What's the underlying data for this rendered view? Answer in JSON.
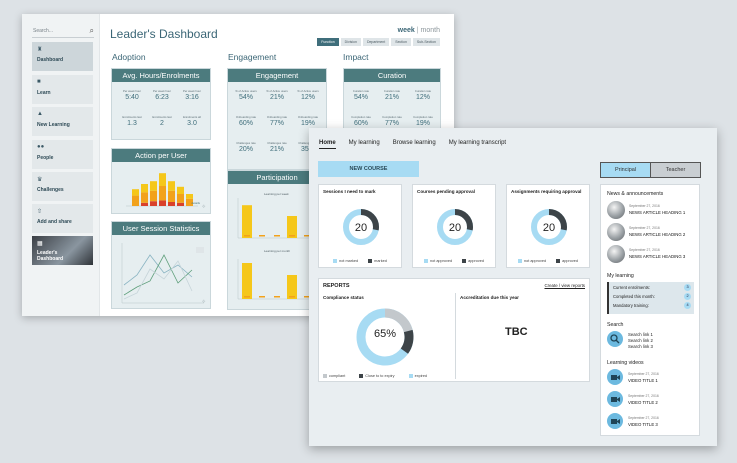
{
  "back": {
    "search_placeholder": "Search...",
    "sidebar": [
      {
        "label": "Dashboard",
        "icon": "binoculars-icon"
      },
      {
        "label": "Learn",
        "icon": "folder-icon"
      },
      {
        "label": "New Learning",
        "icon": "graduation-cap-icon"
      },
      {
        "label": "People",
        "icon": "people-icon"
      },
      {
        "label": "Challenges",
        "icon": "trophy-icon"
      },
      {
        "label": "Add and share",
        "icon": "upload-icon"
      },
      {
        "label": "Leader's Dashboard",
        "icon": "dashboard-icon"
      }
    ],
    "title": "Leader's Dashboard",
    "period": {
      "week": "week",
      "sep": "|",
      "month": "month"
    },
    "filters": [
      "Function",
      "Division",
      "Department",
      "Section",
      "Sub-Section"
    ],
    "sections": {
      "adoption": "Adoption",
      "engagement": "Engagement",
      "impact": "Impact"
    },
    "panels": {
      "avg_hours": {
        "title": "Avg. Hours/Enrolments",
        "stats": [
          {
            "k": "Per week hour",
            "v": "5:40"
          },
          {
            "k": "Per week hour",
            "v": "6:23"
          },
          {
            "k": "Per week hour",
            "v": "3:16"
          },
          {
            "k": "Enrolments last",
            "v": "1.3"
          },
          {
            "k": "Enrolments last",
            "v": "2"
          },
          {
            "k": "Enrolments all",
            "v": "3.0"
          }
        ]
      },
      "action": {
        "title": "Action per User",
        "link": "details"
      },
      "user_session": {
        "title": "User Session Statistics"
      },
      "engagement": {
        "title": "Engagement",
        "stats": [
          {
            "k": "% of Active users",
            "v": "54%"
          },
          {
            "k": "% of Active users",
            "v": "21%"
          },
          {
            "k": "% of Active users",
            "v": "12%"
          },
          {
            "k": "Onboarding rate",
            "v": "60%"
          },
          {
            "k": "Onboarding rate",
            "v": "77%"
          },
          {
            "k": "Onboarding rate",
            "v": "19%"
          },
          {
            "k": "Challenges rate",
            "v": "20%"
          },
          {
            "k": "Challenges rate",
            "v": "21%"
          },
          {
            "k": "Challenges rate",
            "v": "35%"
          }
        ]
      },
      "participation": {
        "title": "Participation",
        "note1": "Learning per week",
        "note2": "Learning per month"
      },
      "curation": {
        "title": "Curation",
        "stats": [
          {
            "k": "Curation rate",
            "v": "54%"
          },
          {
            "k": "Curation rate",
            "v": "21%"
          },
          {
            "k": "Curation rate",
            "v": "12%"
          },
          {
            "k": "Completion rate",
            "v": "60%"
          },
          {
            "k": "Completion rate",
            "v": "77%"
          },
          {
            "k": "Completion rate",
            "v": "19%"
          }
        ]
      }
    },
    "charts": {
      "action_bars": [
        {
          "total": 42,
          "orange": 26,
          "red": 0
        },
        {
          "total": 55,
          "orange": 34,
          "red": 8
        },
        {
          "total": 62,
          "orange": 38,
          "red": 12
        },
        {
          "total": 82,
          "orange": 50,
          "red": 14
        },
        {
          "total": 62,
          "orange": 38,
          "red": 10
        },
        {
          "total": 48,
          "orange": 30,
          "red": 8
        },
        {
          "total": 30,
          "orange": 18,
          "red": 0
        }
      ],
      "participation_top": [
        82,
        0,
        0,
        55,
        0
      ],
      "participation_bottom": [
        90,
        0,
        0,
        60,
        0
      ],
      "colors": {
        "orange": "#f2a21b",
        "red": "#d9412b",
        "yellow": "#f5c71a",
        "teal": "#4c7b7e"
      }
    }
  },
  "front": {
    "nav": [
      "Home",
      "My learning",
      "Browse learning",
      "My learning transcript"
    ],
    "new_course": "NEW COURSE",
    "roles": [
      "Principal",
      "Teacher"
    ],
    "cards": [
      {
        "title": "Sessions I need to mark",
        "value": "20",
        "fraction": 0.72,
        "legend": [
          "not marked",
          "marked"
        ]
      },
      {
        "title": "Courses pending approval",
        "value": "20",
        "fraction": 0.72,
        "legend": [
          "not approved",
          "approved"
        ]
      },
      {
        "title": "Assignments requiring approval",
        "value": "20",
        "fraction": 0.72,
        "legend": [
          "not approved",
          "approved"
        ]
      }
    ],
    "reports": {
      "title": "REPORTS",
      "link": "Create / view reports",
      "compliance_title": "Compliance status",
      "compliance_value": "65%",
      "compliance_fraction": 0.65,
      "legend": [
        "compliant",
        "Close to to expiry",
        "expired"
      ],
      "accreditation_title": "Accreditation due this year",
      "accreditation_value": "TBC"
    },
    "news": {
      "title": "News & announcements",
      "items": [
        {
          "date": "September 27, 2016",
          "heading": "NEWS ARTICLE HEADING 1"
        },
        {
          "date": "September 27, 2016",
          "heading": "NEWS ARTICLE HEADING 2"
        },
        {
          "date": "September 27, 2016",
          "heading": "NEWS ARTICLE HEADING 3"
        }
      ]
    },
    "my_learning": {
      "title": "My learning",
      "rows": [
        {
          "label": "Current enrolments:",
          "count": "3"
        },
        {
          "label": "Completed this month:",
          "count": "2"
        },
        {
          "label": "Mandatory training:",
          "count": "4"
        }
      ]
    },
    "search": {
      "title": "Search",
      "links": [
        "Search link 1",
        "Search link 2",
        "Search link 3"
      ]
    },
    "videos": {
      "title": "Learning videos",
      "items": [
        {
          "date": "September 27, 2016",
          "title": "VIDEO TITLE 1"
        },
        {
          "date": "September 27, 2016",
          "title": "VIDEO TITLE 2"
        },
        {
          "date": "September 27, 2016",
          "title": "VIDEO TITLE 3"
        }
      ]
    },
    "colors": {
      "accent": "#a7dbf3",
      "dark": "#3d4448",
      "ring_light": "#a7dbf3",
      "mid": "#6cb9df"
    }
  }
}
